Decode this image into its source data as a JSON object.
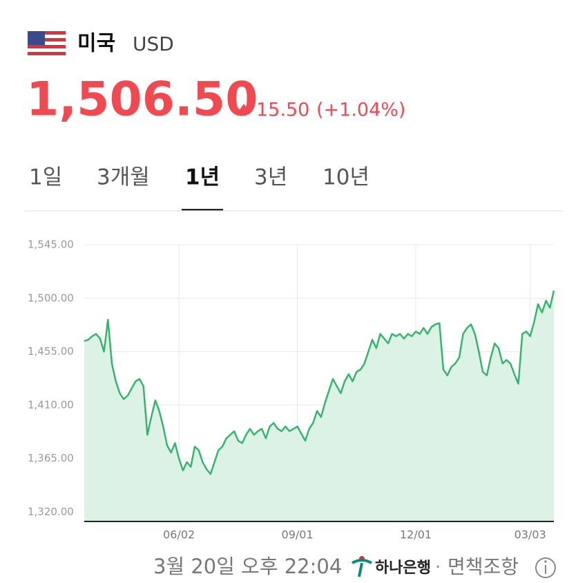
{
  "header": {
    "country": "미국",
    "currency": "USD",
    "price": "1,506.50",
    "change": "15.50",
    "change_percent": "(+1.04%)"
  },
  "tabs": [
    "1일",
    "3개월",
    "1년",
    "3년",
    "10년"
  ],
  "selected_tab": 2,
  "chart_data": {
    "type": "line",
    "color": "#35b46d",
    "fill_color": "#dcf2e5",
    "grid": true,
    "ylim": [
      1312,
      1545
    ],
    "yticks": [
      {
        "value": 1320,
        "label": "1,320.00"
      },
      {
        "value": 1365,
        "label": "1,365.00"
      },
      {
        "value": 1410,
        "label": "1,410.00"
      },
      {
        "value": 1455,
        "label": "1,455.00"
      },
      {
        "value": 1500,
        "label": "1,500.00"
      },
      {
        "value": 1545,
        "label": "1,545.00"
      }
    ],
    "categories": [
      null,
      null,
      null,
      null,
      null,
      null,
      null,
      null,
      null,
      null,
      null,
      null,
      null,
      null,
      null,
      null,
      null,
      null,
      null,
      null,
      null,
      null,
      null,
      null,
      "06/02",
      null,
      null,
      null,
      null,
      null,
      null,
      null,
      null,
      null,
      null,
      null,
      null,
      null,
      null,
      null,
      null,
      null,
      null,
      null,
      null,
      null,
      null,
      null,
      null,
      null,
      null,
      null,
      null,
      null,
      "09/01",
      null,
      null,
      null,
      null,
      null,
      null,
      null,
      null,
      null,
      null,
      null,
      null,
      null,
      null,
      null,
      null,
      null,
      null,
      null,
      null,
      null,
      null,
      null,
      null,
      null,
      null,
      null,
      null,
      null,
      "12/01",
      null,
      null,
      null,
      null,
      null,
      null,
      null,
      null,
      null,
      null,
      null,
      null,
      null,
      null,
      null,
      null,
      null,
      null,
      null,
      null,
      null,
      null,
      null,
      null,
      null,
      null,
      null,
      null,
      "03/03",
      null,
      null,
      null,
      null,
      null,
      null
    ],
    "values": [
      1464,
      1465,
      1468,
      1470,
      1466,
      1455,
      1482,
      1445,
      1430,
      1420,
      1415,
      1418,
      1424,
      1430,
      1432,
      1426,
      1385,
      1400,
      1414,
      1405,
      1392,
      1376,
      1370,
      1378,
      1365,
      1355,
      1362,
      1358,
      1375,
      1372,
      1362,
      1356,
      1352,
      1362,
      1372,
      1375,
      1382,
      1385,
      1388,
      1380,
      1378,
      1385,
      1390,
      1385,
      1388,
      1390,
      1382,
      1392,
      1395,
      1390,
      1388,
      1392,
      1388,
      1390,
      1392,
      1386,
      1380,
      1390,
      1395,
      1405,
      1400,
      1412,
      1422,
      1432,
      1426,
      1420,
      1430,
      1436,
      1430,
      1438,
      1440,
      1445,
      1455,
      1465,
      1458,
      1470,
      1466,
      1462,
      1470,
      1468,
      1470,
      1466,
      1470,
      1468,
      1472,
      1470,
      1475,
      1470,
      1476,
      1478,
      1479,
      1440,
      1435,
      1442,
      1445,
      1450,
      1470,
      1475,
      1478,
      1470,
      1455,
      1438,
      1435,
      1450,
      1462,
      1458,
      1445,
      1448,
      1445,
      1436,
      1428,
      1470,
      1472,
      1468,
      1480,
      1495,
      1488,
      1498,
      1492,
      1506.5
    ]
  },
  "footer": {
    "timestamp": "3월 20일 오후 22:04",
    "bank": "하나은행",
    "separator": "·",
    "disclaimer": "면책조항"
  }
}
